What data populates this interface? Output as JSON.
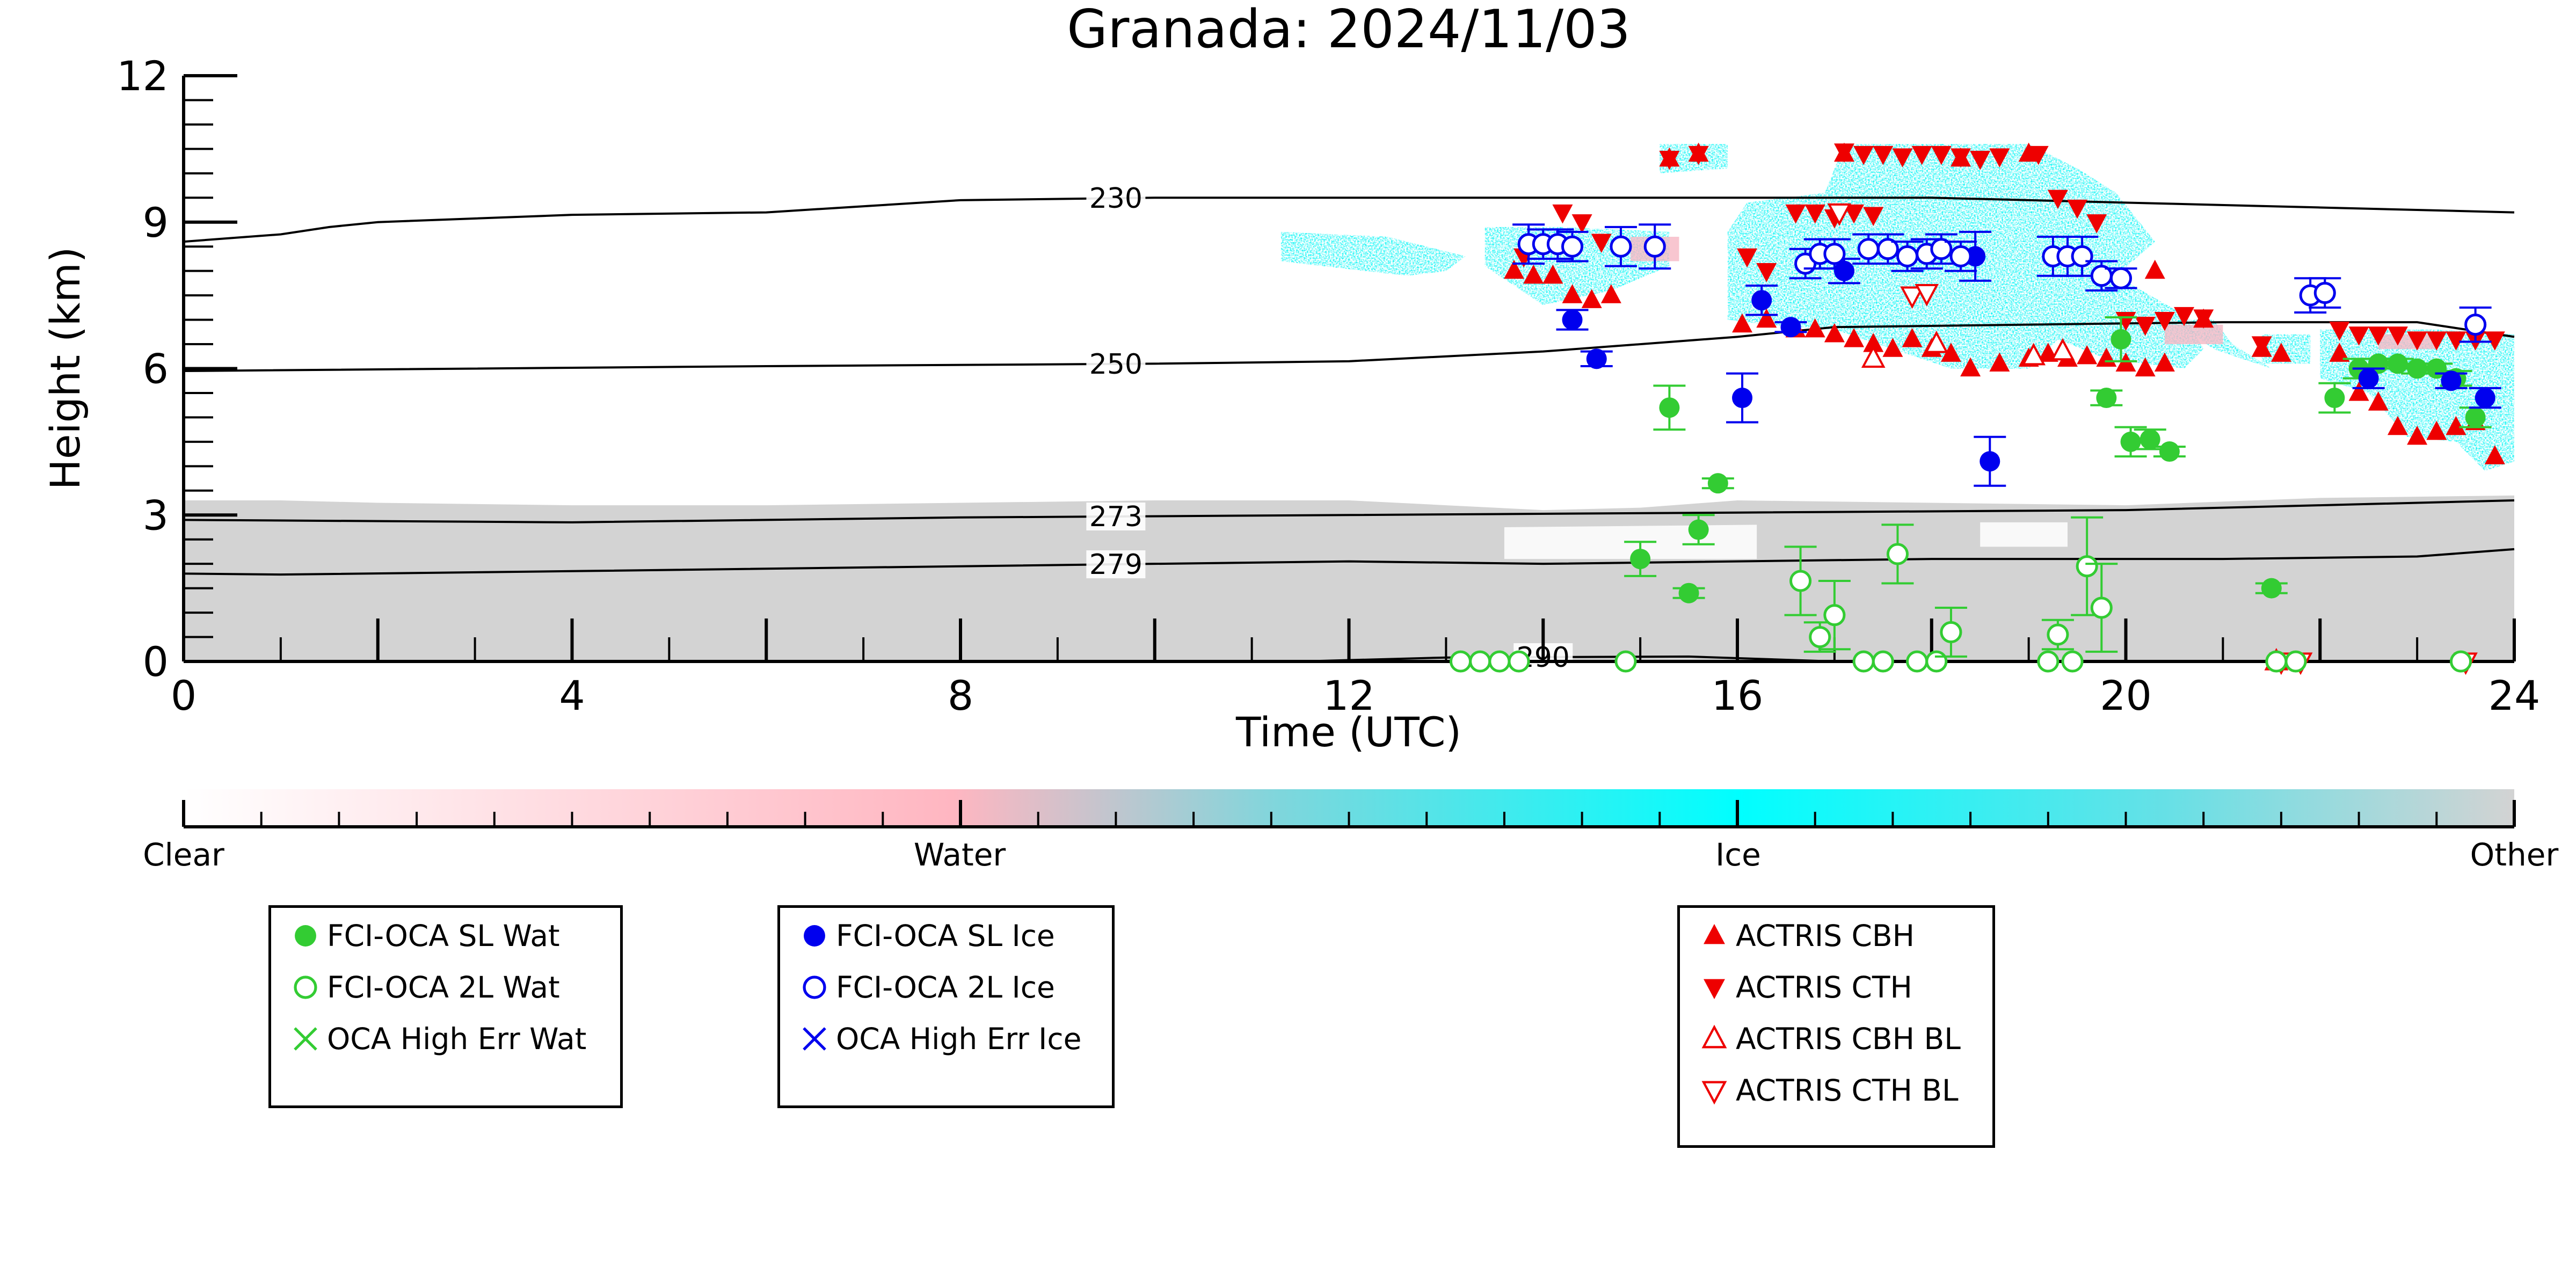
{
  "chart_data": {
    "type": "scatter",
    "title": "Granada: 2024/11/03",
    "xlabel": "Time (UTC)",
    "ylabel": "Height (km)",
    "xlim": [
      0,
      24
    ],
    "ylim": [
      0,
      12
    ],
    "xticks": [
      0,
      4,
      8,
      12,
      16,
      20,
      24
    ],
    "yticks": [
      0,
      3,
      6,
      9,
      12
    ],
    "grid": false,
    "legend_placement": "below",
    "colorbar": {
      "labels": [
        {
          "text": "Clear",
          "pos": 0.0
        },
        {
          "text": "Water",
          "pos": 0.333
        },
        {
          "text": "Ice",
          "pos": 0.667
        },
        {
          "text": "Other",
          "pos": 1.0
        }
      ],
      "stops": [
        {
          "pos": 0.0,
          "color": "#ffffff"
        },
        {
          "pos": 0.33,
          "color": "#ffb6c1"
        },
        {
          "pos": 0.47,
          "color": "#7fd6dc"
        },
        {
          "pos": 0.667,
          "color": "#00ffff"
        },
        {
          "pos": 0.85,
          "color": "#66e0e6"
        },
        {
          "pos": 1.0,
          "color": "#d3d3d3"
        }
      ]
    },
    "temperature_contours": [
      {
        "label": "230",
        "label_x": 9.6,
        "points": [
          [
            0,
            8.6
          ],
          [
            1,
            8.75
          ],
          [
            1.5,
            8.9
          ],
          [
            2,
            9.0
          ],
          [
            4,
            9.15
          ],
          [
            6,
            9.2
          ],
          [
            8,
            9.45
          ],
          [
            10,
            9.5
          ],
          [
            14,
            9.5
          ],
          [
            18,
            9.5
          ],
          [
            22,
            9.3
          ],
          [
            24,
            9.2
          ]
        ]
      },
      {
        "label": "250",
        "label_x": 9.6,
        "points": [
          [
            0,
            5.95
          ],
          [
            6,
            6.05
          ],
          [
            10,
            6.1
          ],
          [
            12,
            6.15
          ],
          [
            14,
            6.35
          ],
          [
            16,
            6.65
          ],
          [
            17,
            6.85
          ],
          [
            19,
            6.9
          ],
          [
            21,
            6.95
          ],
          [
            23,
            6.95
          ],
          [
            24,
            6.65
          ]
        ]
      },
      {
        "label": "273",
        "label_x": 9.6,
        "points": [
          [
            0,
            2.9
          ],
          [
            4,
            2.85
          ],
          [
            8,
            2.95
          ],
          [
            12,
            3.0
          ],
          [
            16,
            3.05
          ],
          [
            20,
            3.1
          ],
          [
            22,
            3.2
          ],
          [
            24,
            3.3
          ]
        ]
      },
      {
        "label": "279",
        "label_x": 9.6,
        "points": [
          [
            0,
            1.8
          ],
          [
            1,
            1.78
          ],
          [
            4,
            1.85
          ],
          [
            8,
            1.95
          ],
          [
            12,
            2.05
          ],
          [
            14,
            2.0
          ],
          [
            18,
            2.1
          ],
          [
            21,
            2.1
          ],
          [
            23,
            2.15
          ],
          [
            24,
            2.3
          ]
        ]
      },
      {
        "label": "290",
        "label_x": 14.0,
        "points": [
          [
            11.5,
            0.0
          ],
          [
            13,
            0.08
          ],
          [
            15.5,
            0.1
          ],
          [
            17,
            0.0
          ]
        ]
      }
    ],
    "series": [
      {
        "name": "FCI-OCA SL Wat",
        "marker": "filled-circle",
        "color": "#33cc33",
        "points": [
          [
            15.0,
            2.1,
            0.35
          ],
          [
            15.5,
            1.4,
            0.1
          ],
          [
            15.3,
            5.2,
            0.45
          ],
          [
            15.6,
            2.7,
            0.3
          ],
          [
            15.8,
            3.65,
            0.1
          ],
          [
            19.8,
            5.4,
            0.15
          ],
          [
            19.95,
            6.6,
            0.45
          ],
          [
            20.05,
            4.5,
            0.3
          ],
          [
            20.25,
            4.55,
            0.2
          ],
          [
            20.45,
            4.3,
            0.1
          ],
          [
            21.5,
            1.5,
            0.1
          ],
          [
            22.15,
            5.4,
            0.3
          ],
          [
            22.4,
            6.0,
            0.2
          ],
          [
            22.6,
            6.1,
            0.1
          ],
          [
            22.8,
            6.1,
            0.1
          ],
          [
            23.0,
            6.0,
            0.1
          ],
          [
            23.2,
            6.0,
            0.1
          ],
          [
            23.4,
            5.8,
            0.15
          ],
          [
            23.6,
            5.0,
            0.2
          ]
        ]
      },
      {
        "name": "FCI-OCA 2L Wat",
        "marker": "open-circle",
        "color": "#33cc33",
        "points": [
          [
            13.15,
            0.0,
            0
          ],
          [
            13.35,
            0.0,
            0
          ],
          [
            13.55,
            0.0,
            0
          ],
          [
            13.75,
            0.0,
            0
          ],
          [
            14.85,
            0.0,
            0
          ],
          [
            16.65,
            1.65,
            0.7
          ],
          [
            16.85,
            0.5,
            0.3
          ],
          [
            17.0,
            0.95,
            0.7
          ],
          [
            17.3,
            0.0,
            0
          ],
          [
            17.5,
            0.0,
            0
          ],
          [
            17.65,
            2.2,
            0.6
          ],
          [
            17.85,
            0.0,
            0
          ],
          [
            18.05,
            0.0,
            0
          ],
          [
            18.2,
            0.6,
            0.5
          ],
          [
            19.2,
            0.0,
            0
          ],
          [
            19.3,
            0.55,
            0.3
          ],
          [
            19.45,
            0.0,
            0
          ],
          [
            19.6,
            1.95,
            1.0
          ],
          [
            19.75,
            1.1,
            0.9
          ],
          [
            21.55,
            0.0,
            0
          ],
          [
            21.75,
            0.0,
            0
          ],
          [
            23.45,
            0.0,
            0
          ]
        ]
      },
      {
        "name": "OCA High Err Wat",
        "marker": "x",
        "color": "#33cc33",
        "points": []
      },
      {
        "name": "FCI-OCA SL Ice",
        "marker": "filled-circle",
        "color": "#0000ee",
        "points": [
          [
            14.3,
            7.0,
            0.2
          ],
          [
            14.55,
            6.2,
            0.15
          ],
          [
            16.05,
            5.4,
            0.5
          ],
          [
            16.25,
            7.4,
            0.3
          ],
          [
            16.55,
            6.85,
            0.1
          ],
          [
            17.1,
            8.0,
            0.25
          ],
          [
            18.45,
            8.3,
            0.5
          ],
          [
            18.6,
            4.1,
            0.5
          ],
          [
            22.5,
            5.8,
            0.2
          ],
          [
            23.35,
            5.75,
            0.15
          ],
          [
            23.7,
            5.4,
            0.2
          ]
        ]
      },
      {
        "name": "FCI-OCA 2L Ice",
        "marker": "open-circle",
        "color": "#0000ee",
        "points": [
          [
            13.85,
            8.55,
            0.4
          ],
          [
            14.0,
            8.55,
            0.3
          ],
          [
            14.15,
            8.55,
            0.3
          ],
          [
            14.3,
            8.5,
            0.3
          ],
          [
            14.8,
            8.5,
            0.4
          ],
          [
            15.15,
            8.5,
            0.45
          ],
          [
            16.7,
            8.15,
            0.3
          ],
          [
            16.85,
            8.35,
            0.3
          ],
          [
            17.0,
            8.35,
            0.3
          ],
          [
            17.35,
            8.45,
            0.3
          ],
          [
            17.55,
            8.45,
            0.3
          ],
          [
            17.75,
            8.3,
            0.3
          ],
          [
            17.95,
            8.35,
            0.3
          ],
          [
            18.1,
            8.45,
            0.3
          ],
          [
            18.3,
            8.3,
            0.3
          ],
          [
            19.25,
            8.3,
            0.4
          ],
          [
            19.4,
            8.3,
            0.4
          ],
          [
            19.55,
            8.3,
            0.4
          ],
          [
            19.75,
            7.9,
            0.3
          ],
          [
            19.95,
            7.85,
            0.2
          ],
          [
            21.9,
            7.5,
            0.35
          ],
          [
            22.05,
            7.55,
            0.3
          ],
          [
            23.6,
            6.9,
            0.35
          ]
        ]
      },
      {
        "name": "OCA High Err Ice",
        "marker": "x",
        "color": "#0000ee",
        "points": []
      },
      {
        "name": "ACTRIS CBH",
        "marker": "filled-triangle-up",
        "color": "#ee0000",
        "points": [
          [
            13.7,
            8.0
          ],
          [
            13.9,
            7.9
          ],
          [
            14.1,
            7.9
          ],
          [
            14.3,
            7.5
          ],
          [
            14.5,
            7.4
          ],
          [
            14.7,
            7.5
          ],
          [
            15.3,
            10.3
          ],
          [
            15.6,
            10.4
          ],
          [
            16.05,
            6.9
          ],
          [
            16.3,
            7.0
          ],
          [
            16.6,
            6.8
          ],
          [
            16.8,
            6.8
          ],
          [
            17.0,
            6.7
          ],
          [
            17.2,
            6.6
          ],
          [
            17.4,
            6.5
          ],
          [
            17.6,
            6.4
          ],
          [
            17.8,
            6.6
          ],
          [
            18.0,
            6.4
          ],
          [
            18.2,
            6.3
          ],
          [
            18.4,
            6.0
          ],
          [
            18.7,
            6.1
          ],
          [
            19.0,
            6.2
          ],
          [
            19.2,
            6.3
          ],
          [
            19.4,
            6.2
          ],
          [
            19.6,
            6.25
          ],
          [
            19.8,
            6.2
          ],
          [
            20.0,
            6.1
          ],
          [
            20.2,
            6.0
          ],
          [
            20.4,
            6.1
          ],
          [
            21.4,
            6.4
          ],
          [
            21.6,
            6.3
          ],
          [
            22.2,
            6.3
          ],
          [
            22.4,
            5.5
          ],
          [
            22.6,
            5.3
          ],
          [
            22.8,
            4.8
          ],
          [
            23.0,
            4.6
          ],
          [
            23.2,
            4.7
          ],
          [
            23.4,
            4.8
          ],
          [
            23.6,
            4.9
          ],
          [
            23.8,
            4.2
          ],
          [
            17.1,
            10.4
          ],
          [
            18.3,
            10.3
          ],
          [
            19.0,
            10.4
          ],
          [
            20.3,
            8.0
          ],
          [
            20.8,
            7.0
          ]
        ]
      },
      {
        "name": "ACTRIS CTH",
        "marker": "filled-triangle-down",
        "color": "#ee0000",
        "points": [
          [
            13.8,
            8.3
          ],
          [
            14.0,
            8.5
          ],
          [
            14.2,
            9.2
          ],
          [
            14.4,
            9.0
          ],
          [
            14.6,
            8.6
          ],
          [
            15.3,
            10.3
          ],
          [
            15.6,
            10.4
          ],
          [
            16.1,
            8.3
          ],
          [
            16.3,
            8.0
          ],
          [
            16.6,
            9.2
          ],
          [
            16.8,
            9.2
          ],
          [
            17.0,
            9.1
          ],
          [
            17.2,
            9.2
          ],
          [
            17.4,
            9.15
          ],
          [
            17.1,
            10.45
          ],
          [
            17.3,
            10.4
          ],
          [
            17.5,
            10.4
          ],
          [
            17.7,
            10.35
          ],
          [
            17.9,
            10.4
          ],
          [
            18.1,
            10.4
          ],
          [
            18.3,
            10.35
          ],
          [
            18.5,
            10.3
          ],
          [
            18.7,
            10.35
          ],
          [
            19.1,
            10.4
          ],
          [
            19.3,
            9.5
          ],
          [
            19.5,
            9.3
          ],
          [
            19.7,
            9.0
          ],
          [
            20.0,
            7.0
          ],
          [
            20.2,
            6.9
          ],
          [
            20.4,
            7.0
          ],
          [
            20.6,
            7.1
          ],
          [
            20.8,
            7.05
          ],
          [
            21.4,
            6.5
          ],
          [
            22.2,
            6.8
          ],
          [
            22.4,
            6.7
          ],
          [
            22.6,
            6.7
          ],
          [
            22.8,
            6.7
          ],
          [
            23.0,
            6.6
          ],
          [
            23.2,
            6.6
          ],
          [
            23.4,
            6.6
          ],
          [
            23.6,
            6.6
          ],
          [
            23.8,
            6.6
          ]
        ]
      },
      {
        "name": "ACTRIS CBH BL",
        "marker": "open-triangle-up",
        "color": "#ee0000",
        "points": [
          [
            17.4,
            6.2
          ],
          [
            18.05,
            6.5
          ],
          [
            19.05,
            6.25
          ],
          [
            19.35,
            6.35
          ],
          [
            21.55,
            0.0
          ]
        ]
      },
      {
        "name": "ACTRIS CTH BL",
        "marker": "open-triangle-down",
        "color": "#ee0000",
        "points": [
          [
            17.05,
            9.2
          ],
          [
            17.8,
            7.5
          ],
          [
            17.95,
            7.55
          ],
          [
            21.6,
            0.0
          ],
          [
            21.8,
            0.0
          ],
          [
            23.5,
            0.0
          ]
        ]
      }
    ],
    "legend_groups": [
      [
        "FCI-OCA SL Wat",
        "FCI-OCA 2L Wat",
        "OCA High Err Wat"
      ],
      [
        "FCI-OCA SL Ice",
        "FCI-OCA 2L Ice",
        "OCA High Err Ice"
      ],
      [
        "ACTRIS CBH",
        "ACTRIS CTH",
        "ACTRIS CBH BL",
        "ACTRIS CTH BL"
      ]
    ]
  }
}
